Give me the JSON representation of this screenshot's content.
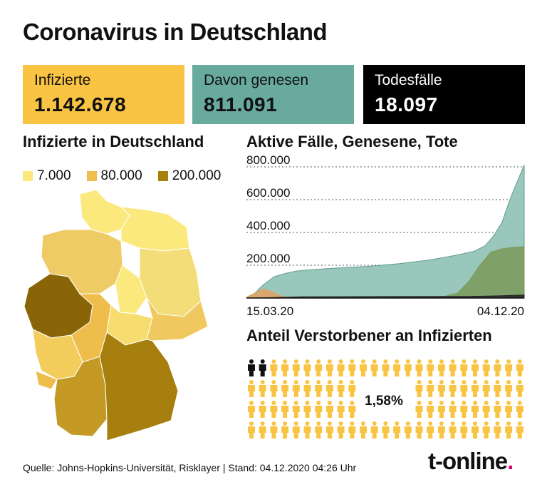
{
  "title": "Coronavirus in Deutschland",
  "stats": {
    "infected": {
      "label": "Infizierte",
      "value": "1.142.678"
    },
    "recovered": {
      "label": "Davon genesen",
      "value": "811.091"
    },
    "deaths": {
      "label": "Todesfälle",
      "value": "18.097"
    }
  },
  "map": {
    "heading": "Infizierte in Deutschland",
    "legend": [
      {
        "label": "7.000",
        "color": "#fbe97e"
      },
      {
        "label": "80.000",
        "color": "#efbd4c"
      },
      {
        "label": "200.000",
        "color": "#a67f0e"
      }
    ]
  },
  "chart_data": [
    {
      "type": "area",
      "title": "Aktive Fälle, Genesene, Tote",
      "x_start": "15.03.20",
      "x_end": "04.12.20",
      "x_labels": [
        "15.03.20",
        "04.12.20"
      ],
      "ylim": [
        0,
        800000
      ],
      "yticks": [
        200000,
        400000,
        600000,
        800000
      ],
      "ytick_labels": [
        "200.000",
        "400.000",
        "600.000",
        "800.000"
      ],
      "grid": true,
      "series": [
        {
          "color": "#93c4b7",
          "x_fraction": [
            0,
            0.03,
            0.06,
            0.1,
            0.14,
            0.18,
            0.25,
            0.35,
            0.45,
            0.55,
            0.65,
            0.72,
            0.78,
            0.82,
            0.86,
            0.89,
            0.92,
            0.94,
            0.96,
            0.98,
            1.0
          ],
          "values": [
            2000,
            30000,
            80000,
            130000,
            150000,
            165000,
            175000,
            185000,
            195000,
            210000,
            230000,
            250000,
            270000,
            285000,
            320000,
            380000,
            460000,
            560000,
            650000,
            730000,
            811091
          ]
        },
        {
          "color": "#e3a064",
          "x_fraction": [
            0,
            0.03,
            0.06,
            0.09,
            0.12,
            0.15,
            0.2
          ],
          "values": [
            5000,
            30000,
            55000,
            40000,
            15000,
            3000,
            0
          ]
        },
        {
          "color": "#7a9a5a",
          "x_fraction": [
            0,
            0.55,
            0.7,
            0.76,
            0.8,
            0.84,
            0.88,
            0.92,
            0.96,
            1.0
          ],
          "values": [
            0,
            1000,
            5000,
            30000,
            100000,
            200000,
            280000,
            300000,
            310000,
            313000
          ]
        },
        {
          "color": "#222222",
          "x_fraction": [
            0,
            0.1,
            0.2,
            0.5,
            0.8,
            0.9,
            1.0
          ],
          "values": [
            0,
            3000,
            8000,
            9000,
            10000,
            13000,
            18097
          ]
        }
      ]
    },
    {
      "type": "icon-array",
      "title": "Anteil Verstorbener an Infizierten",
      "label": "1,58%",
      "value_percent": 1.58,
      "total_icons": 100,
      "highlighted_icons": 2,
      "colors": {
        "deceased": "#111111",
        "infected": "#f9c443"
      }
    }
  ],
  "footer": {
    "source": "Quelle: Johns-Hopkins-Universität, Risklayer | Stand: 04.12.2020 04:26 Uhr",
    "logo": "t-online",
    "logo_dot": "."
  }
}
